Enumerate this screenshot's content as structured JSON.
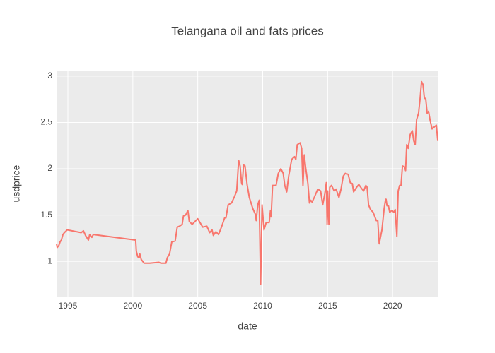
{
  "chart_data": {
    "type": "line",
    "title": "Telangana oil and fats prices",
    "x_label": "date",
    "y_label": "usdprice",
    "color": "#f8766d",
    "grid": true,
    "background": "#ebebeb",
    "xlim": [
      1994.13,
      2023.53
    ],
    "xticks": [
      1995,
      2000,
      2005,
      2010,
      2015,
      2020
    ],
    "ylim": [
      0.62,
      3.06
    ],
    "yticks": [
      1,
      1.5,
      2,
      2.5,
      3
    ],
    "x": [
      1994.13,
      1994.18,
      1994.3,
      1994.4,
      1994.5,
      1994.62,
      1994.73,
      1994.95,
      1996.03,
      1996.2,
      1996.36,
      1996.58,
      1996.68,
      1996.85,
      1996.96,
      2000.22,
      2000.27,
      2000.38,
      2000.49,
      2000.54,
      2000.65,
      2000.87,
      2001.3,
      2002.0,
      2002.17,
      2002.55,
      2002.66,
      2002.83,
      2003.0,
      2003.26,
      2003.42,
      2003.6,
      2003.8,
      2003.9,
      2004.07,
      2004.24,
      2004.35,
      2004.57,
      2005.0,
      2005.38,
      2005.7,
      2005.92,
      2006.1,
      2006.2,
      2006.4,
      2006.6,
      2006.85,
      2007.07,
      2007.17,
      2007.34,
      2007.6,
      2007.83,
      2008.0,
      2008.15,
      2008.26,
      2008.37,
      2008.42,
      2008.53,
      2008.64,
      2008.8,
      2008.97,
      2009.24,
      2009.46,
      2009.5,
      2009.62,
      2009.73,
      2009.84,
      2009.95,
      2010.1,
      2010.27,
      2010.5,
      2010.6,
      2010.65,
      2010.76,
      2011.03,
      2011.2,
      2011.4,
      2011.58,
      2011.7,
      2011.85,
      2012.0,
      2012.23,
      2012.45,
      2012.55,
      2012.66,
      2012.88,
      2013.0,
      2013.1,
      2013.2,
      2013.3,
      2013.48,
      2013.6,
      2013.7,
      2013.8,
      2013.97,
      2014.24,
      2014.46,
      2014.62,
      2014.78,
      2014.9,
      2014.96,
      2015.0,
      2015.1,
      2015.16,
      2015.3,
      2015.5,
      2015.65,
      2015.87,
      2016.03,
      2016.2,
      2016.36,
      2016.58,
      2016.74,
      2016.9,
      2017.0,
      2017.23,
      2017.4,
      2017.6,
      2017.77,
      2017.94,
      2018.04,
      2018.15,
      2018.3,
      2018.5,
      2018.75,
      2018.86,
      2018.97,
      2019.18,
      2019.35,
      2019.46,
      2019.5,
      2019.57,
      2019.68,
      2019.78,
      2019.95,
      2020.1,
      2020.2,
      2020.33,
      2020.43,
      2020.54,
      2020.65,
      2020.76,
      2020.92,
      2021.0,
      2021.09,
      2021.2,
      2021.36,
      2021.52,
      2021.63,
      2021.74,
      2021.85,
      2022.0,
      2022.12,
      2022.23,
      2022.34,
      2022.45,
      2022.55,
      2022.66,
      2022.77,
      2022.88,
      2023.04,
      2023.2,
      2023.37,
      2023.48
    ],
    "values": [
      1.19,
      1.15,
      1.17,
      1.21,
      1.23,
      1.29,
      1.31,
      1.34,
      1.31,
      1.33,
      1.28,
      1.23,
      1.29,
      1.26,
      1.29,
      1.23,
      1.11,
      1.05,
      1.04,
      1.08,
      1.02,
      0.98,
      0.98,
      0.99,
      0.98,
      0.98,
      1.04,
      1.08,
      1.21,
      1.22,
      1.37,
      1.38,
      1.4,
      1.49,
      1.5,
      1.55,
      1.43,
      1.4,
      1.46,
      1.37,
      1.38,
      1.31,
      1.34,
      1.28,
      1.32,
      1.29,
      1.38,
      1.47,
      1.47,
      1.61,
      1.63,
      1.7,
      1.76,
      2.09,
      2.03,
      1.85,
      1.83,
      2.04,
      2.03,
      1.83,
      1.69,
      1.57,
      1.5,
      1.44,
      1.61,
      1.66,
      0.75,
      1.61,
      1.34,
      1.42,
      1.42,
      1.55,
      1.48,
      1.82,
      1.82,
      1.95,
      2.0,
      1.95,
      1.82,
      1.75,
      1.92,
      2.1,
      2.13,
      2.1,
      2.26,
      2.28,
      2.22,
      1.82,
      2.15,
      2.02,
      1.84,
      1.63,
      1.66,
      1.64,
      1.69,
      1.78,
      1.76,
      1.61,
      1.73,
      1.85,
      1.4,
      1.76,
      1.4,
      1.8,
      1.82,
      1.76,
      1.78,
      1.69,
      1.78,
      1.92,
      1.95,
      1.94,
      1.85,
      1.84,
      1.75,
      1.8,
      1.83,
      1.79,
      1.76,
      1.82,
      1.8,
      1.61,
      1.56,
      1.53,
      1.44,
      1.44,
      1.19,
      1.34,
      1.57,
      1.67,
      1.67,
      1.6,
      1.6,
      1.53,
      1.55,
      1.53,
      1.56,
      1.27,
      1.76,
      1.82,
      1.82,
      2.03,
      2.02,
      1.98,
      2.26,
      2.22,
      2.37,
      2.41,
      2.3,
      2.26,
      2.53,
      2.6,
      2.76,
      2.94,
      2.91,
      2.76,
      2.76,
      2.6,
      2.62,
      2.53,
      2.43,
      2.45,
      2.47,
      2.3
    ]
  }
}
